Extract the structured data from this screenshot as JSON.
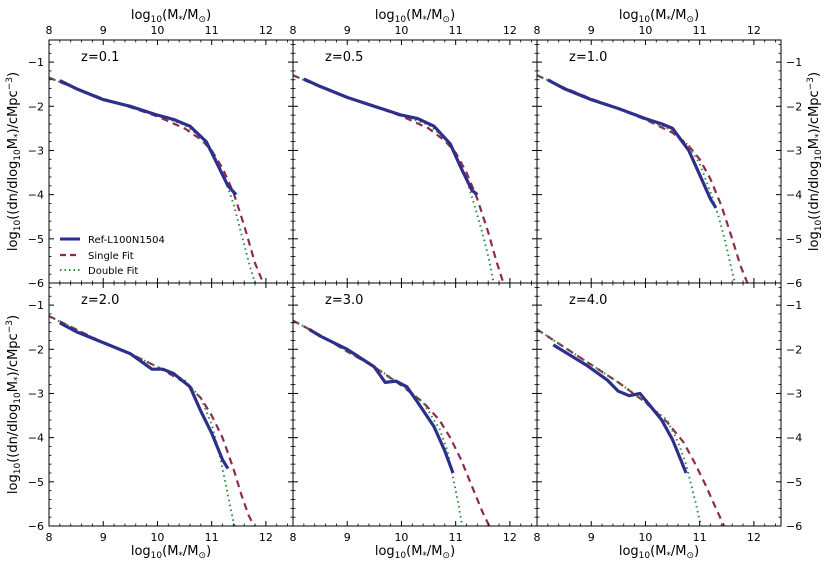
{
  "figure": {
    "xlabel_main": "log",
    "xlabel_sub": "10",
    "xlabel_rest": "(M",
    "xlabel_star": "*",
    "xlabel_slash": "/M",
    "xlabel_sun": "⊙",
    "xlabel_close": ")",
    "ylabel_a": "log",
    "ylabel_sub": "10",
    "ylabel_b": "((dn/dlog",
    "ylabel_sub2": "10",
    "ylabel_c": "M",
    "ylabel_star": "*",
    "ylabel_d": ")/cMpc",
    "ylabel_sup": "−3",
    "ylabel_e": ")"
  },
  "legend": {
    "placement": "lower-left of top-left panel",
    "items": [
      {
        "label": "Ref-L100N1504",
        "color": "#2e2e8c",
        "style": "solid"
      },
      {
        "label": "Single Fit",
        "color": "#8c2b4f",
        "style": "dashed"
      },
      {
        "label": "Double Fit",
        "color": "#2e8b3e",
        "style": "dotted"
      }
    ]
  },
  "chart_data": [
    {
      "type": "line",
      "panel_label": "z=0.1",
      "xlim": [
        8,
        12.5
      ],
      "ylim": [
        -6,
        -0.5
      ],
      "xticks": [
        8,
        9,
        10,
        11,
        12
      ],
      "yticks": [
        -1,
        -2,
        -3,
        -4,
        -5,
        -6
      ],
      "series": [
        {
          "name": "Ref-L100N1504",
          "x": [
            8.2,
            8.5,
            9.0,
            9.5,
            10.0,
            10.3,
            10.6,
            10.9,
            11.1,
            11.3,
            11.45
          ],
          "y": [
            -1.42,
            -1.6,
            -1.85,
            -2.0,
            -2.2,
            -2.3,
            -2.45,
            -2.8,
            -3.3,
            -3.8,
            -4.0
          ]
        },
        {
          "name": "Single Fit",
          "x": [
            8.0,
            8.5,
            9.0,
            9.5,
            10.0,
            10.5,
            10.8,
            11.0,
            11.2,
            11.4,
            11.6,
            11.8,
            11.95
          ],
          "y": [
            -1.35,
            -1.6,
            -1.83,
            -2.02,
            -2.23,
            -2.5,
            -2.75,
            -3.0,
            -3.4,
            -3.95,
            -4.7,
            -5.55,
            -6.0
          ]
        },
        {
          "name": "Double Fit",
          "x": [
            8.0,
            8.5,
            9.0,
            9.5,
            10.0,
            10.5,
            10.8,
            11.0,
            11.2,
            11.4,
            11.55,
            11.7,
            11.8
          ],
          "y": [
            -1.35,
            -1.6,
            -1.83,
            -2.02,
            -2.2,
            -2.42,
            -2.7,
            -3.0,
            -3.5,
            -4.2,
            -4.9,
            -5.6,
            -6.0
          ]
        }
      ]
    },
    {
      "type": "line",
      "panel_label": "z=0.5",
      "xlim": [
        8,
        12.5
      ],
      "ylim": [
        -6,
        -0.5
      ],
      "xticks": [
        8,
        9,
        10,
        11,
        12
      ],
      "yticks": [
        -1,
        -2,
        -3,
        -4,
        -5,
        -6
      ],
      "series": [
        {
          "name": "Ref-L100N1504",
          "x": [
            8.2,
            8.5,
            9.0,
            9.5,
            10.0,
            10.3,
            10.6,
            10.9,
            11.1,
            11.3,
            11.4
          ],
          "y": [
            -1.38,
            -1.55,
            -1.8,
            -2.0,
            -2.2,
            -2.28,
            -2.45,
            -2.85,
            -3.4,
            -3.9,
            -4.0
          ]
        },
        {
          "name": "Single Fit",
          "x": [
            8.0,
            8.5,
            9.0,
            9.5,
            10.0,
            10.5,
            10.8,
            11.0,
            11.2,
            11.4,
            11.6,
            11.75,
            11.88
          ],
          "y": [
            -1.3,
            -1.56,
            -1.8,
            -2.0,
            -2.22,
            -2.5,
            -2.78,
            -3.05,
            -3.5,
            -4.1,
            -4.85,
            -5.5,
            -6.0
          ]
        },
        {
          "name": "Double Fit",
          "x": [
            8.0,
            8.5,
            9.0,
            9.5,
            10.0,
            10.5,
            10.8,
            11.0,
            11.2,
            11.35,
            11.5,
            11.62,
            11.7
          ],
          "y": [
            -1.3,
            -1.56,
            -1.8,
            -2.0,
            -2.2,
            -2.42,
            -2.72,
            -3.1,
            -3.65,
            -4.25,
            -4.9,
            -5.5,
            -6.0
          ]
        }
      ]
    },
    {
      "type": "line",
      "panel_label": "z=1.0",
      "xlim": [
        8,
        12.5
      ],
      "ylim": [
        -6,
        -0.5
      ],
      "xticks": [
        8,
        9,
        10,
        11,
        12
      ],
      "yticks": [
        -1,
        -2,
        -3,
        -4,
        -5,
        -6
      ],
      "series": [
        {
          "name": "Ref-L100N1504",
          "x": [
            8.2,
            8.5,
            9.0,
            9.5,
            10.0,
            10.3,
            10.5,
            10.8,
            11.0,
            11.2,
            11.3
          ],
          "y": [
            -1.4,
            -1.6,
            -1.85,
            -2.05,
            -2.28,
            -2.4,
            -2.5,
            -3.0,
            -3.55,
            -4.1,
            -4.3
          ]
        },
        {
          "name": "Single Fit",
          "x": [
            8.0,
            8.5,
            9.0,
            9.5,
            10.0,
            10.5,
            10.8,
            11.0,
            11.2,
            11.4,
            11.6,
            11.75,
            11.88
          ],
          "y": [
            -1.3,
            -1.58,
            -1.83,
            -2.05,
            -2.3,
            -2.6,
            -2.9,
            -3.2,
            -3.65,
            -4.25,
            -5.0,
            -5.6,
            -6.0
          ]
        },
        {
          "name": "Double Fit",
          "x": [
            8.0,
            8.5,
            9.0,
            9.5,
            10.0,
            10.5,
            10.8,
            11.0,
            11.2,
            11.35,
            11.48,
            11.58,
            11.65
          ],
          "y": [
            -1.3,
            -1.58,
            -1.83,
            -2.05,
            -2.3,
            -2.55,
            -2.9,
            -3.3,
            -3.95,
            -4.5,
            -5.1,
            -5.65,
            -6.0
          ]
        }
      ]
    },
    {
      "type": "line",
      "panel_label": "z=2.0",
      "xlim": [
        8,
        12.5
      ],
      "ylim": [
        -6,
        -0.5
      ],
      "xticks": [
        8,
        9,
        10,
        11,
        12
      ],
      "yticks": [
        -1,
        -2,
        -3,
        -4,
        -5,
        -6
      ],
      "series": [
        {
          "name": "Ref-L100N1504",
          "x": [
            8.2,
            8.5,
            9.0,
            9.5,
            9.9,
            10.1,
            10.3,
            10.6,
            10.8,
            11.0,
            11.2,
            11.3
          ],
          "y": [
            -1.4,
            -1.6,
            -1.85,
            -2.1,
            -2.45,
            -2.45,
            -2.55,
            -2.85,
            -3.4,
            -3.9,
            -4.5,
            -4.7
          ]
        },
        {
          "name": "Single Fit",
          "x": [
            8.0,
            8.5,
            9.0,
            9.5,
            10.0,
            10.5,
            10.8,
            11.0,
            11.2,
            11.4,
            11.55,
            11.68,
            11.78
          ],
          "y": [
            -1.25,
            -1.55,
            -1.85,
            -2.1,
            -2.4,
            -2.75,
            -3.1,
            -3.5,
            -4.0,
            -4.7,
            -5.3,
            -5.75,
            -6.0
          ]
        },
        {
          "name": "Double Fit",
          "x": [
            8.0,
            8.5,
            9.0,
            9.5,
            10.0,
            10.5,
            10.8,
            11.0,
            11.15,
            11.25,
            11.35,
            11.42
          ],
          "y": [
            -1.25,
            -1.55,
            -1.85,
            -2.1,
            -2.4,
            -2.7,
            -3.1,
            -3.7,
            -4.4,
            -5.0,
            -5.6,
            -6.0
          ]
        }
      ]
    },
    {
      "type": "line",
      "panel_label": "z=3.0",
      "xlim": [
        8,
        12.5
      ],
      "ylim": [
        -6,
        -0.5
      ],
      "xticks": [
        8,
        9,
        10,
        11,
        12
      ],
      "yticks": [
        -1,
        -2,
        -3,
        -4,
        -5,
        -6
      ],
      "series": [
        {
          "name": "Ref-L100N1504",
          "x": [
            8.3,
            8.5,
            9.0,
            9.5,
            9.7,
            9.9,
            10.1,
            10.3,
            10.6,
            10.8,
            10.95
          ],
          "y": [
            -1.55,
            -1.7,
            -2.0,
            -2.4,
            -2.75,
            -2.72,
            -2.85,
            -3.2,
            -3.75,
            -4.3,
            -4.8
          ]
        },
        {
          "name": "Single Fit",
          "x": [
            8.0,
            8.5,
            9.0,
            9.5,
            10.0,
            10.4,
            10.7,
            10.9,
            11.1,
            11.3,
            11.5,
            11.62
          ],
          "y": [
            -1.35,
            -1.68,
            -2.05,
            -2.4,
            -2.82,
            -3.2,
            -3.6,
            -4.0,
            -4.5,
            -5.1,
            -5.7,
            -6.0
          ]
        },
        {
          "name": "Double Fit",
          "x": [
            8.0,
            8.5,
            9.0,
            9.5,
            10.0,
            10.4,
            10.7,
            10.85,
            10.95,
            11.05,
            11.12
          ],
          "y": [
            -1.35,
            -1.68,
            -2.05,
            -2.4,
            -2.8,
            -3.2,
            -3.8,
            -4.3,
            -4.9,
            -5.5,
            -6.0
          ]
        }
      ]
    },
    {
      "type": "line",
      "panel_label": "z=4.0",
      "xlim": [
        8,
        12.5
      ],
      "ylim": [
        -6,
        -0.5
      ],
      "xticks": [
        8,
        9,
        10,
        11,
        12
      ],
      "yticks": [
        -1,
        -2,
        -3,
        -4,
        -5,
        -6
      ],
      "series": [
        {
          "name": "Ref-L100N1504",
          "x": [
            8.3,
            8.5,
            8.9,
            9.3,
            9.5,
            9.7,
            9.9,
            10.1,
            10.3,
            10.5,
            10.75
          ],
          "y": [
            -1.9,
            -2.05,
            -2.35,
            -2.7,
            -2.95,
            -3.05,
            -3.0,
            -3.3,
            -3.6,
            -4.05,
            -4.8
          ]
        },
        {
          "name": "Single Fit",
          "x": [
            8.0,
            8.5,
            9.0,
            9.5,
            10.0,
            10.4,
            10.7,
            10.9,
            11.1,
            11.3,
            11.45
          ],
          "y": [
            -1.55,
            -1.95,
            -2.35,
            -2.75,
            -3.2,
            -3.65,
            -4.1,
            -4.55,
            -5.05,
            -5.6,
            -6.0
          ]
        },
        {
          "name": "Double Fit",
          "x": [
            8.0,
            8.5,
            9.0,
            9.5,
            10.0,
            10.4,
            10.6,
            10.75,
            10.85,
            10.95,
            11.02
          ],
          "y": [
            -1.55,
            -1.95,
            -2.35,
            -2.75,
            -3.2,
            -3.6,
            -4.1,
            -4.6,
            -5.1,
            -5.6,
            -6.0
          ]
        }
      ]
    }
  ]
}
